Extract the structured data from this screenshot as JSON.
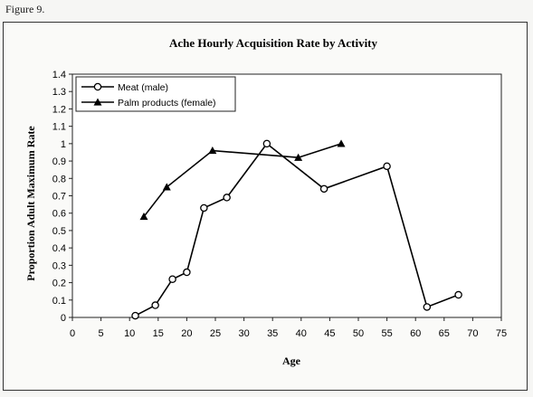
{
  "figure_label": "Figure 9.",
  "chart_data": {
    "type": "line",
    "title": "Ache Hourly Acquisition Rate by Activity",
    "xlabel": "Age",
    "ylabel": "Proportion Adult Maximum Rate",
    "xlim": [
      0,
      75
    ],
    "ylim": [
      0,
      1.4
    ],
    "x_ticks": [
      0,
      5,
      10,
      15,
      20,
      25,
      30,
      35,
      40,
      45,
      50,
      55,
      60,
      65,
      70,
      75
    ],
    "y_ticks": [
      0,
      0.1,
      0.2,
      0.3,
      0.4,
      0.5,
      0.6,
      0.7,
      0.8,
      0.9,
      1,
      1.1,
      1.2,
      1.3,
      1.4
    ],
    "x_tick_labels": [
      "0",
      "5",
      "10",
      "15",
      "20",
      "25",
      "30",
      "35",
      "40",
      "45",
      "50",
      "55",
      "60",
      "65",
      "70",
      "75"
    ],
    "y_tick_labels": [
      "0",
      "0.1",
      "0.2",
      "0.3",
      "0.4",
      "0.5",
      "0.6",
      "0.7",
      "0.8",
      "0.9",
      "1",
      "1.1",
      "1.2",
      "1.3",
      "1.4"
    ],
    "grid": false,
    "legend_position": "top-left",
    "series": [
      {
        "name": "Meat (male)",
        "marker": "circle",
        "color": "#000000",
        "x": [
          11,
          14.5,
          17.5,
          20,
          23,
          27,
          34,
          44,
          55,
          62,
          67.5
        ],
        "y": [
          0.01,
          0.07,
          0.22,
          0.26,
          0.63,
          0.69,
          1.0,
          0.74,
          0.87,
          0.06,
          0.13
        ]
      },
      {
        "name": "Palm products (female)",
        "marker": "triangle",
        "color": "#000000",
        "x": [
          12.5,
          16.5,
          24.5,
          39.5,
          47
        ],
        "y": [
          0.58,
          0.75,
          0.96,
          0.92,
          1.0
        ]
      }
    ]
  }
}
